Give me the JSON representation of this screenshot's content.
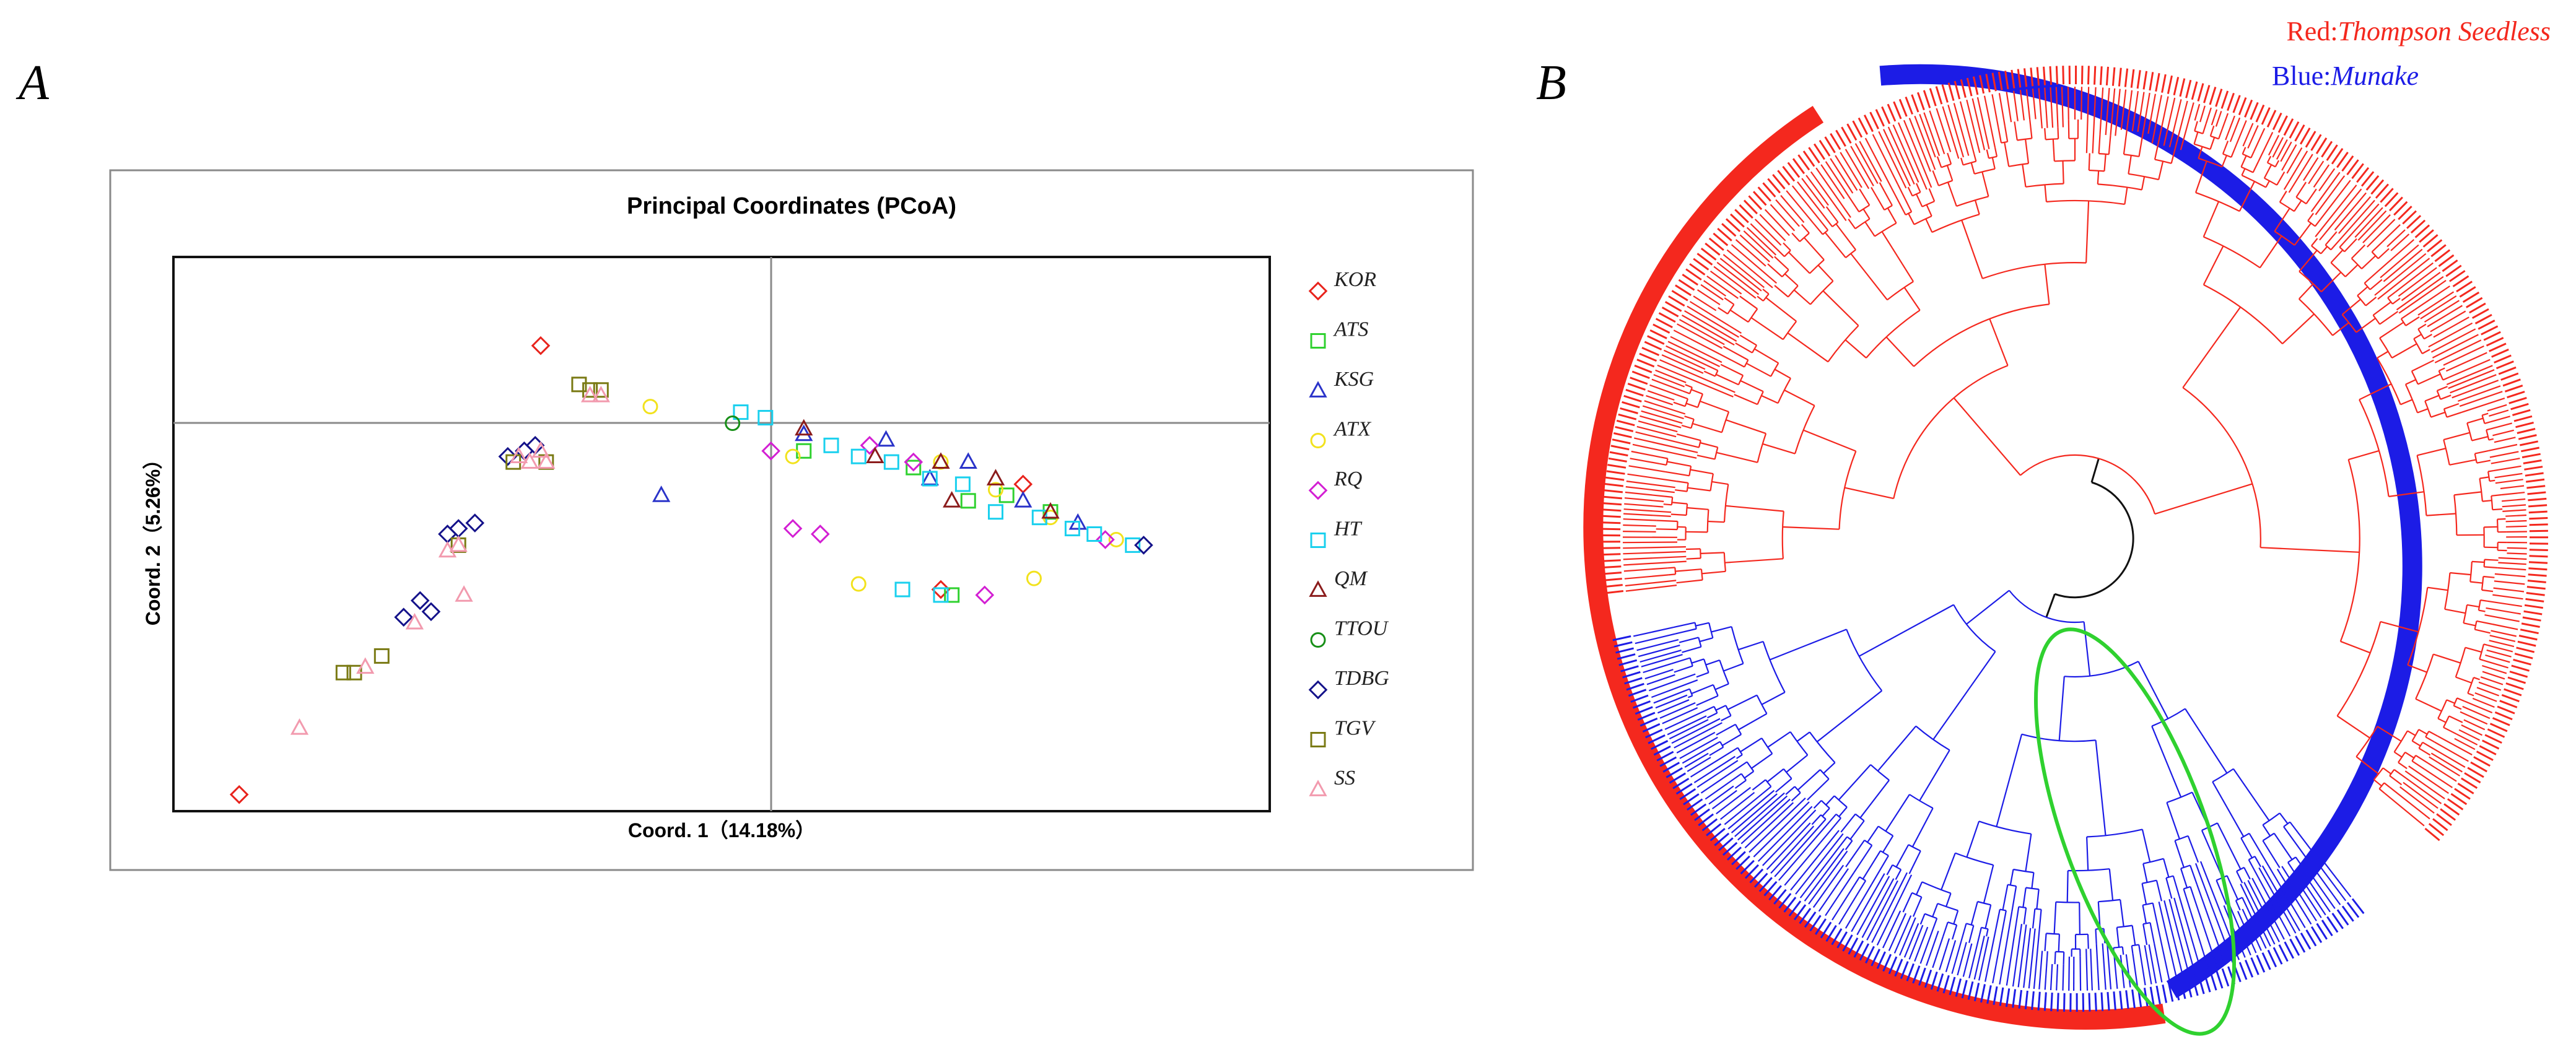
{
  "panel_a": {
    "label": "A",
    "chart_data": {
      "type": "scatter",
      "title": "Principal Coordinates (PCoA)",
      "xlabel": "Coord. 1（14.18%）",
      "ylabel": "Coord. 2（5.26%）",
      "xlim": [
        -1.0,
        1.0
      ],
      "ylim": [
        -0.6,
        0.4
      ],
      "grid": false,
      "legend_position": "right",
      "series": [
        {
          "name": "KOR",
          "marker": "diamond",
          "color": "#e8231c",
          "points": [
            [
              -0.88,
              -0.57
            ],
            [
              -0.33,
              0.24
            ],
            [
              0.4,
              -0.2
            ],
            [
              0.55,
              -0.01
            ]
          ]
        },
        {
          "name": "ATS",
          "marker": "square",
          "color": "#2fd12f",
          "points": [
            [
              0.15,
              0.05
            ],
            [
              0.35,
              0.02
            ],
            [
              0.45,
              -0.04
            ],
            [
              0.6,
              -0.06
            ],
            [
              0.42,
              -0.21
            ],
            [
              0.52,
              -0.03
            ]
          ]
        },
        {
          "name": "KSG",
          "marker": "triangle",
          "color": "#2a33c9",
          "points": [
            [
              -0.11,
              -0.03
            ],
            [
              0.15,
              0.08
            ],
            [
              0.3,
              0.07
            ],
            [
              0.45,
              0.03
            ],
            [
              0.65,
              -0.08
            ],
            [
              0.38,
              0.0
            ],
            [
              0.55,
              -0.04
            ]
          ]
        },
        {
          "name": "ATX",
          "marker": "circle",
          "color": "#f2e21d",
          "points": [
            [
              -0.13,
              0.13
            ],
            [
              0.13,
              0.04
            ],
            [
              0.4,
              0.03
            ],
            [
              0.6,
              -0.07
            ],
            [
              0.25,
              -0.19
            ],
            [
              0.57,
              -0.18
            ],
            [
              0.72,
              -0.11
            ],
            [
              0.5,
              -0.02
            ]
          ]
        },
        {
          "name": "RQ",
          "marker": "diamond",
          "color": "#d31fd3",
          "points": [
            [
              0.09,
              0.05
            ],
            [
              0.13,
              -0.09
            ],
            [
              0.18,
              -0.1
            ],
            [
              0.48,
              -0.21
            ],
            [
              0.35,
              0.03
            ],
            [
              0.7,
              -0.11
            ],
            [
              0.27,
              0.06
            ]
          ]
        },
        {
          "name": "HT",
          "marker": "square",
          "color": "#1ad0ee",
          "points": [
            [
              0.035,
              0.12
            ],
            [
              0.08,
              0.11
            ],
            [
              0.2,
              0.06
            ],
            [
              0.31,
              0.03
            ],
            [
              0.38,
              0.0
            ],
            [
              0.5,
              -0.06
            ],
            [
              0.64,
              -0.09
            ],
            [
              0.75,
              -0.12
            ],
            [
              0.33,
              -0.2
            ],
            [
              0.4,
              -0.21
            ],
            [
              0.25,
              0.04
            ],
            [
              0.44,
              -0.01
            ],
            [
              0.58,
              -0.07
            ],
            [
              0.68,
              -0.1
            ]
          ]
        },
        {
          "name": "QM",
          "marker": "triangle",
          "color": "#8b1c1c",
          "points": [
            [
              0.15,
              0.09
            ],
            [
              0.28,
              0.04
            ],
            [
              0.4,
              0.03
            ],
            [
              0.5,
              0.0
            ],
            [
              0.42,
              -0.04
            ],
            [
              0.6,
              -0.06
            ]
          ]
        },
        {
          "name": "TTOU",
          "marker": "circle",
          "color": "#178f17",
          "points": [
            [
              0.02,
              0.1
            ]
          ]
        },
        {
          "name": "TDBG",
          "marker": "diamond",
          "color": "#14128a",
          "points": [
            [
              -0.58,
              -0.25
            ],
            [
              -0.55,
              -0.22
            ],
            [
              -0.5,
              -0.1
            ],
            [
              -0.45,
              -0.08
            ],
            [
              -0.39,
              0.04
            ],
            [
              -0.34,
              0.06
            ],
            [
              -0.53,
              -0.24
            ],
            [
              -0.48,
              -0.09
            ],
            [
              0.77,
              -0.12
            ],
            [
              -0.36,
              0.05
            ]
          ]
        },
        {
          "name": "TGV",
          "marker": "square",
          "color": "#7a7a14",
          "points": [
            [
              -0.69,
              -0.35
            ],
            [
              -0.67,
              -0.35
            ],
            [
              -0.62,
              -0.32
            ],
            [
              -0.26,
              0.17
            ],
            [
              -0.24,
              0.16
            ],
            [
              -0.22,
              0.16
            ],
            [
              -0.32,
              0.03
            ],
            [
              -0.38,
              0.03
            ],
            [
              -0.48,
              -0.12
            ]
          ]
        },
        {
          "name": "SS",
          "marker": "triangle",
          "color": "#f29aae",
          "points": [
            [
              -0.77,
              -0.45
            ],
            [
              -0.65,
              -0.34
            ],
            [
              -0.56,
              -0.26
            ],
            [
              -0.47,
              -0.21
            ],
            [
              -0.5,
              -0.13
            ],
            [
              -0.48,
              -0.12
            ],
            [
              -0.37,
              0.04
            ],
            [
              -0.35,
              0.03
            ],
            [
              -0.32,
              0.03
            ],
            [
              -0.24,
              0.15
            ],
            [
              -0.22,
              0.15
            ],
            [
              -0.33,
              0.05
            ]
          ]
        }
      ]
    }
  },
  "panel_b": {
    "label": "B",
    "legend": {
      "red_prefix": "Red:",
      "red_name": "Thompson Seedless",
      "blue_prefix": "Blue:",
      "blue_name": "Munake"
    },
    "colors": {
      "red": "#f4281e",
      "blue": "#1c1ce6",
      "highlight": "#2fd12f",
      "root": "#111111"
    },
    "chart_data": {
      "type": "dendrogram",
      "layout": "circular",
      "clades": [
        {
          "name": "Thompson Seedless",
          "color": "#f4281e",
          "leaf_count": 150
        },
        {
          "name": "Munake",
          "color": "#1c1ce6",
          "leaf_count": 140
        }
      ],
      "highlight": "green ellipse around admixed branches near the root"
    }
  }
}
